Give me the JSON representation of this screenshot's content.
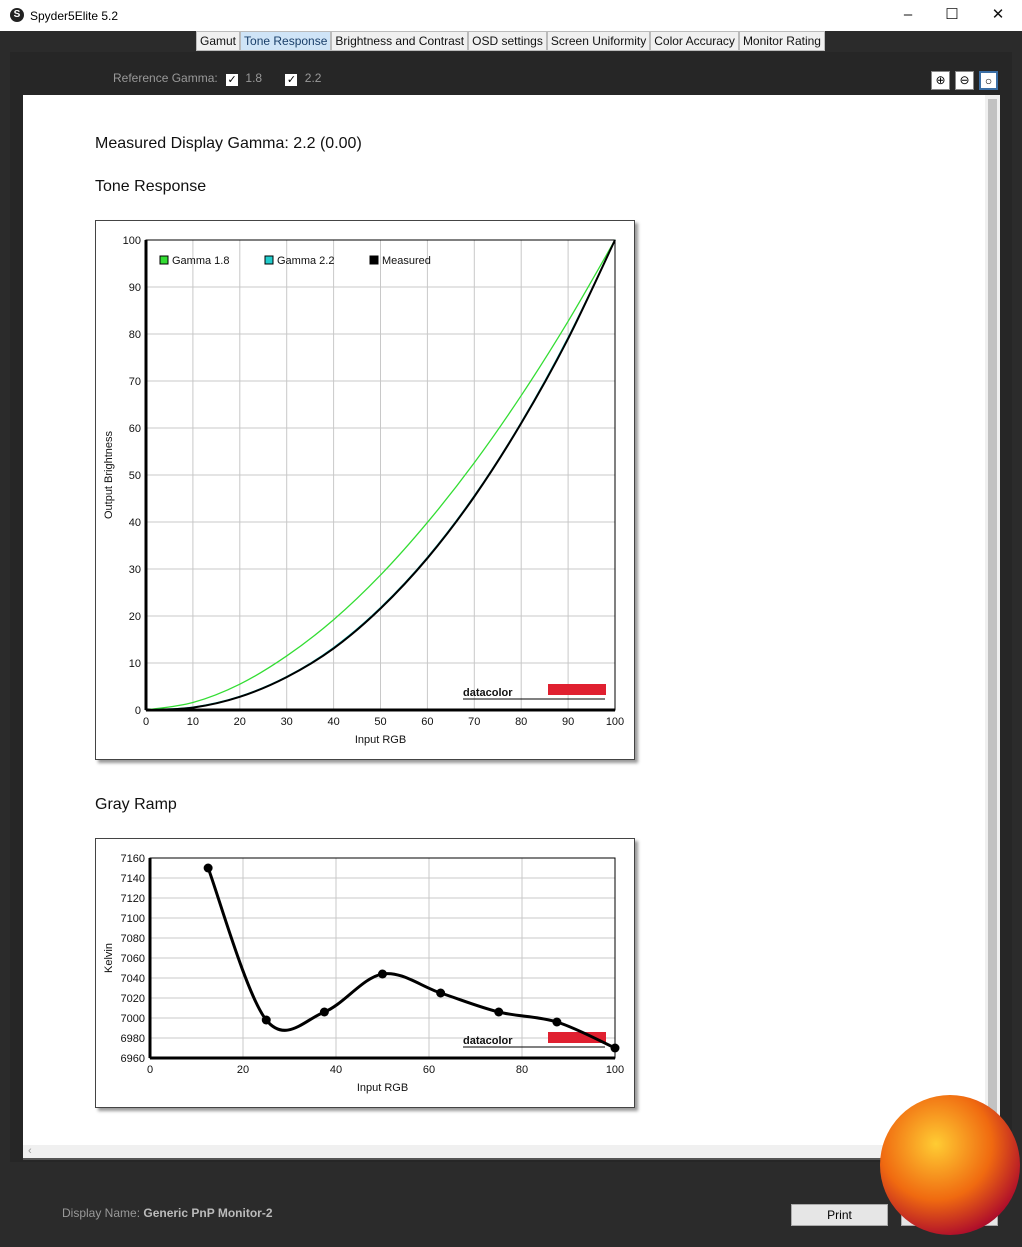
{
  "window": {
    "title": "Spyder5Elite 5.2",
    "minimize": "–",
    "maximize": "☐",
    "close": "✕"
  },
  "tabs": [
    {
      "label": "Gamut"
    },
    {
      "label": "Tone Response",
      "active": true
    },
    {
      "label": "Brightness and Contrast"
    },
    {
      "label": "OSD settings"
    },
    {
      "label": "Screen Uniformity"
    },
    {
      "label": "Color Accuracy"
    },
    {
      "label": "Monitor Rating"
    }
  ],
  "toolbar": {
    "reference_gamma_label": "Reference Gamma:",
    "gamma18": {
      "label": "1.8",
      "checked": true
    },
    "gamma22": {
      "label": "2.2",
      "checked": true
    },
    "zoom_in_icon": "zoom-in-icon",
    "zoom_out_icon": "zoom-out-icon",
    "zoom_fit_icon": "zoom-fit-icon"
  },
  "content": {
    "measured_gamma": "Measured Display Gamma: 2.2 (0.00)",
    "tone_response_heading": "Tone Response",
    "gray_ramp_heading": "Gray Ramp",
    "logo_text": "datacolor"
  },
  "chart_data": [
    {
      "type": "line",
      "xlabel": "Input RGB",
      "ylabel": "Output Brightness",
      "xlim": [
        0,
        100
      ],
      "ylim": [
        0,
        100
      ],
      "xticks": [
        0,
        10,
        20,
        30,
        40,
        50,
        60,
        70,
        80,
        90,
        100
      ],
      "yticks": [
        0,
        10,
        20,
        30,
        40,
        50,
        60,
        70,
        80,
        90,
        100
      ],
      "grid": true,
      "legend": "top-left",
      "x": [
        0,
        10,
        20,
        30,
        40,
        50,
        60,
        70,
        80,
        90,
        100
      ],
      "series": [
        {
          "name": "Gamma 1.8",
          "color": "#33dd33",
          "values": [
            0,
            1.6,
            5.5,
            11.5,
            19.2,
            28.7,
            39.9,
            52.6,
            66.9,
            82.7,
            100
          ]
        },
        {
          "name": "Gamma 2.2",
          "color": "#22cccc",
          "values": [
            0,
            0.6,
            2.9,
            7.1,
            13.3,
            21.8,
            32.5,
            45.6,
            61.2,
            79.3,
            100
          ]
        },
        {
          "name": "Measured",
          "color": "#000000",
          "values": [
            0,
            0.5,
            2.8,
            7.0,
            13.1,
            21.6,
            32.3,
            45.4,
            61.0,
            79.0,
            100
          ]
        }
      ]
    },
    {
      "type": "line",
      "xlabel": "Input RGB",
      "ylabel": "Kelvin",
      "xlim": [
        0,
        100
      ],
      "ylim": [
        6960,
        7160
      ],
      "xticks": [
        0,
        20,
        40,
        60,
        80,
        100
      ],
      "yticks": [
        6960,
        6980,
        7000,
        7020,
        7040,
        7060,
        7080,
        7100,
        7120,
        7140,
        7160
      ],
      "grid": true,
      "x": [
        12.5,
        25,
        37.5,
        50,
        62.5,
        75,
        87.5,
        100
      ],
      "series": [
        {
          "color": "#000000",
          "values": [
            7150,
            6998,
            7006,
            7044,
            7025,
            7006,
            6996,
            6970
          ]
        }
      ]
    }
  ],
  "footer": {
    "display_name_label": "Display Name:",
    "display_name_value": "Generic PnP Monitor-2",
    "print_label": "Print"
  }
}
